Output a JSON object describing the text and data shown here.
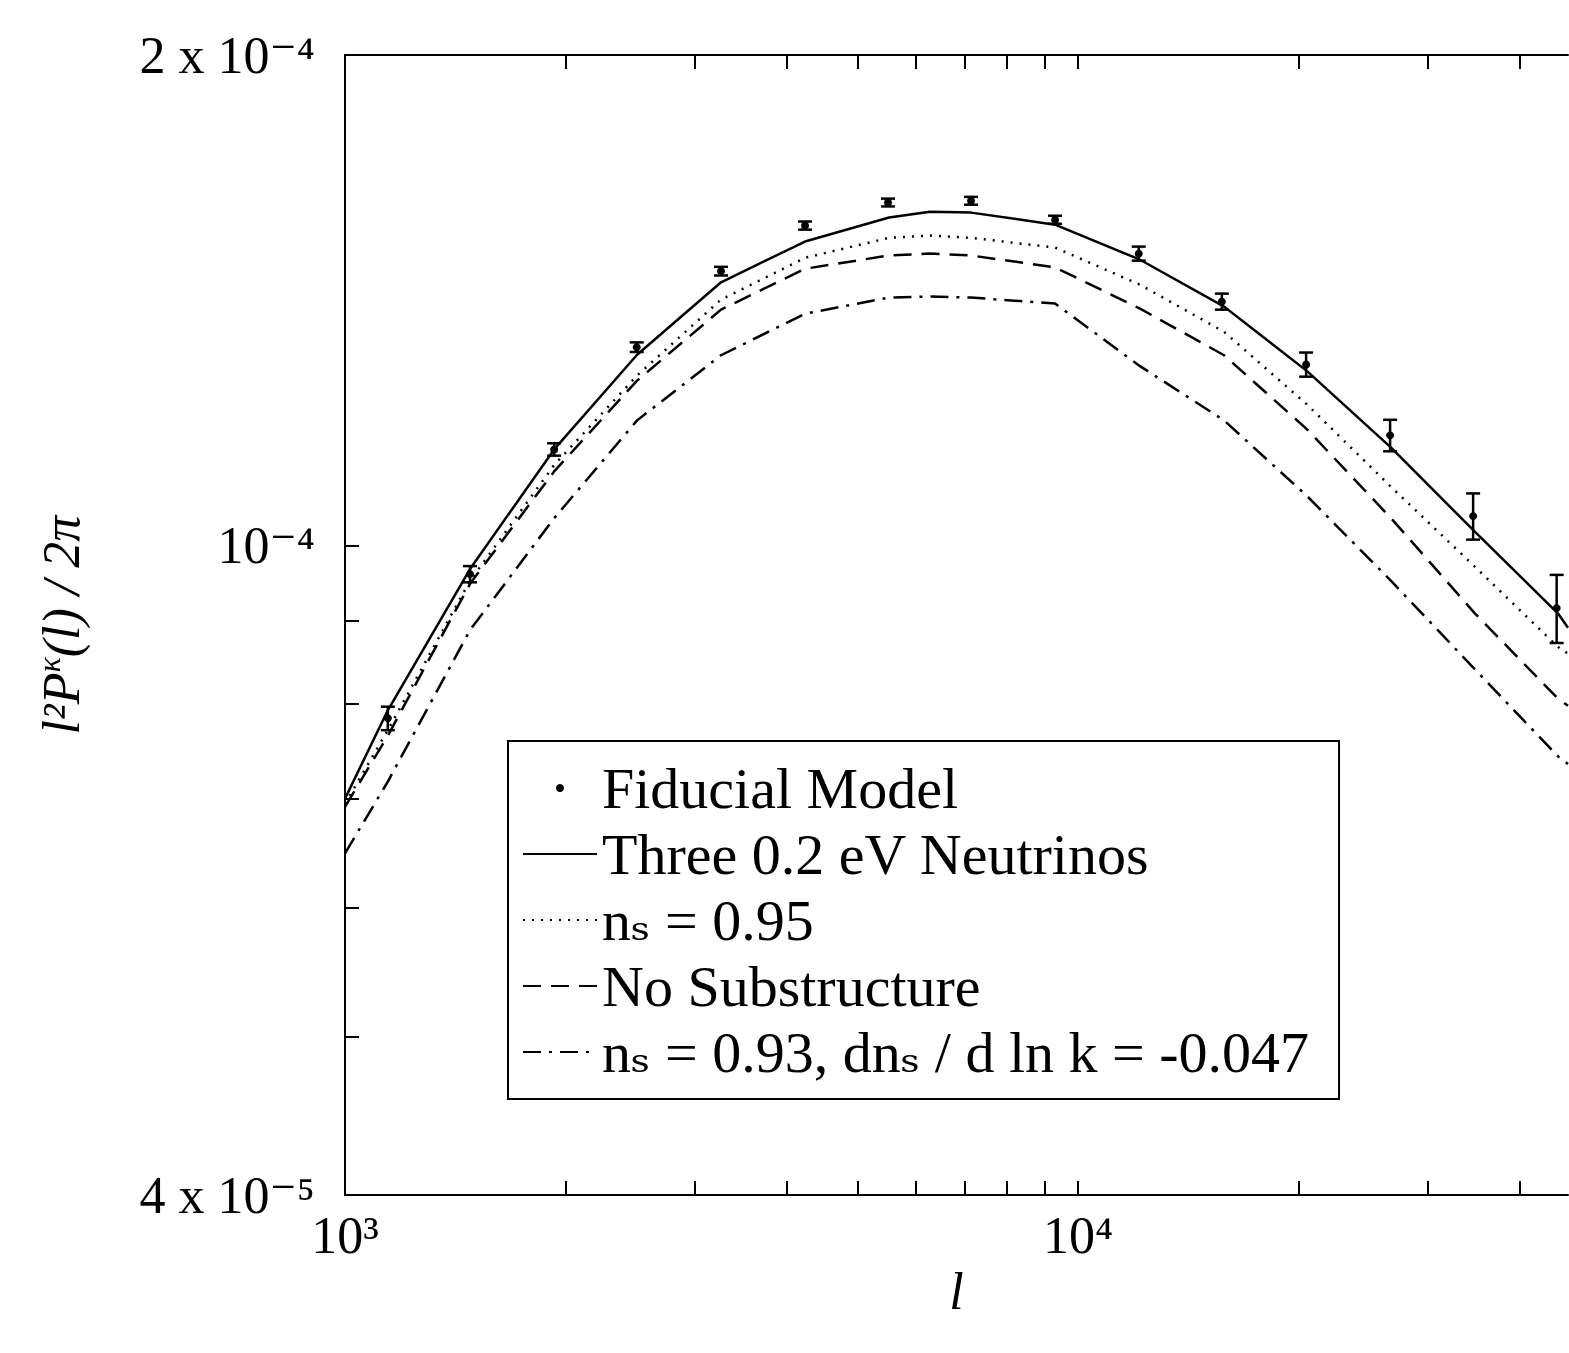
{
  "chart_data": {
    "type": "line",
    "xlabel": "l",
    "ylabel": "l²P$^{κ}$(l) / 2π",
    "log": "xy",
    "grid": false,
    "legend": "bottom",
    "xlim": [
      1000,
      46600
    ],
    "xticks": [
      {
        "value": 1000,
        "label": "10³"
      },
      {
        "value": 2000,
        "label": null
      },
      {
        "value": 3000,
        "label": null
      },
      {
        "value": 4000,
        "label": null
      },
      {
        "value": 5000,
        "label": null
      },
      {
        "value": 6000,
        "label": null
      },
      {
        "value": 7000,
        "label": null
      },
      {
        "value": 8000,
        "label": null
      },
      {
        "value": 9000,
        "label": null
      },
      {
        "value": 10000,
        "label": "10⁴"
      },
      {
        "value": 20000,
        "label": null
      },
      {
        "value": 30000,
        "label": null
      },
      {
        "value": 40000,
        "label": null
      }
    ],
    "ylim": [
      4e-05,
      0.0002
    ],
    "yticks": [
      {
        "value": 4e-05,
        "label": "4 x 10⁻⁵"
      },
      {
        "value": 5e-05,
        "label": null
      },
      {
        "value": 6e-05,
        "label": null
      },
      {
        "value": 7e-05,
        "label": null
      },
      {
        "value": 8e-05,
        "label": null
      },
      {
        "value": 9e-05,
        "label": null
      },
      {
        "value": 0.0001,
        "label": "10⁻⁴"
      },
      {
        "value": 0.0002,
        "label": "2 x 10⁻⁴"
      }
    ],
    "series": [
      {
        "name": "Fiducial Model",
        "type": "scatter",
        "marker": "circle",
        "color": "#000000",
        "x": [
          1144,
          1481,
          1929,
          2500,
          3258,
          4242,
          5505,
          7145,
          9303,
          12100,
          15710,
          20470,
          26650,
          34590,
          44970
        ],
        "values": [
          7.84e-05,
          9.61e-05,
          0.0001146,
          0.0001324,
          0.0001474,
          0.0001572,
          0.0001624,
          0.0001628,
          0.0001585,
          0.0001511,
          0.0001412,
          0.0001292,
          0.0001169,
          0.0001043,
          9.16e-05
        ],
        "errors": [
          1.3e-06,
          1.1e-06,
          1e-06,
          9e-07,
          9e-07,
          9e-07,
          9e-07,
          9e-07,
          9e-07,
          1.5e-06,
          1.6e-06,
          2.2e-06,
          2.6e-06,
          3.4e-06,
          4.4e-06
        ]
      },
      {
        "name": "Three 0.2 eV Neutrinos",
        "type": "line",
        "marker": "none",
        "line_style": "solid",
        "color": "#000000",
        "x": [
          1000,
          1144,
          1481,
          1929,
          2503,
          3258,
          4242,
          5523,
          6281,
          7145,
          9303,
          12150,
          15820,
          20530,
          26730,
          34800,
          45170,
          46600
        ],
        "values": [
          7e-05,
          7.93e-05,
          9.68e-05,
          0.0001146,
          0.000131,
          0.0001451,
          0.0001537,
          0.000159,
          0.0001603,
          0.0001601,
          0.0001574,
          0.0001498,
          0.0001402,
          0.000128,
          0.0001149,
          0.000102,
          9.09e-05,
          8.91e-05
        ]
      },
      {
        "name": "nₛ = 0.95",
        "type": "line",
        "marker": "none",
        "line_style": "dotted",
        "color": "#000000",
        "x": [
          1000,
          1144,
          1481,
          1929,
          2503,
          3258,
          4242,
          5523,
          6281,
          7145,
          9303,
          12150,
          15820,
          20530,
          26730,
          34800,
          45170,
          46600
        ],
        "values": [
          6.95e-05,
          7.71e-05,
          9.52e-05,
          0.0001121,
          0.0001272,
          0.0001416,
          0.0001502,
          0.0001545,
          0.000155,
          0.0001545,
          0.0001524,
          0.0001446,
          0.0001353,
          0.0001221,
          0.0001087,
          9.71e-05,
          8.67e-05,
          8.59e-05
        ]
      },
      {
        "name": "No Substructure",
        "type": "line",
        "marker": "none",
        "line_style": "dashed",
        "color": "#000000",
        "x": [
          1000,
          1144,
          1481,
          1929,
          2503,
          3258,
          4242,
          5523,
          6281,
          7145,
          9303,
          12150,
          15820,
          20530,
          26730,
          34800,
          45170,
          46600
        ],
        "values": [
          6.92e-05,
          7.65e-05,
          9.48e-05,
          0.0001111,
          0.0001263,
          0.0001396,
          0.0001479,
          0.0001507,
          0.0001511,
          0.0001507,
          0.0001482,
          0.0001398,
          0.0001309,
          0.0001179,
          0.000104,
          9.09e-05,
          8.06e-05,
          7.98e-05
        ]
      },
      {
        "name": "nₛ = 0.93, dnₛ / d ln k = -0.047",
        "type": "line",
        "marker": "none",
        "line_style": "dashdot",
        "color": "#000000",
        "x": [
          1000,
          1144,
          1481,
          1929,
          2503,
          3258,
          4242,
          5523,
          6281,
          7145,
          9303,
          12150,
          15820,
          20530,
          26730,
          34800,
          45170,
          46600
        ],
        "values": [
          6.48e-05,
          7.17e-05,
          8.88e-05,
          0.000104,
          0.0001194,
          0.0001309,
          0.0001388,
          0.000142,
          0.0001422,
          0.000142,
          0.0001408,
          0.0001289,
          0.0001194,
          0.0001073,
          9.52e-05,
          8.4e-05,
          7.43e-05,
          7.35e-05
        ]
      }
    ]
  }
}
